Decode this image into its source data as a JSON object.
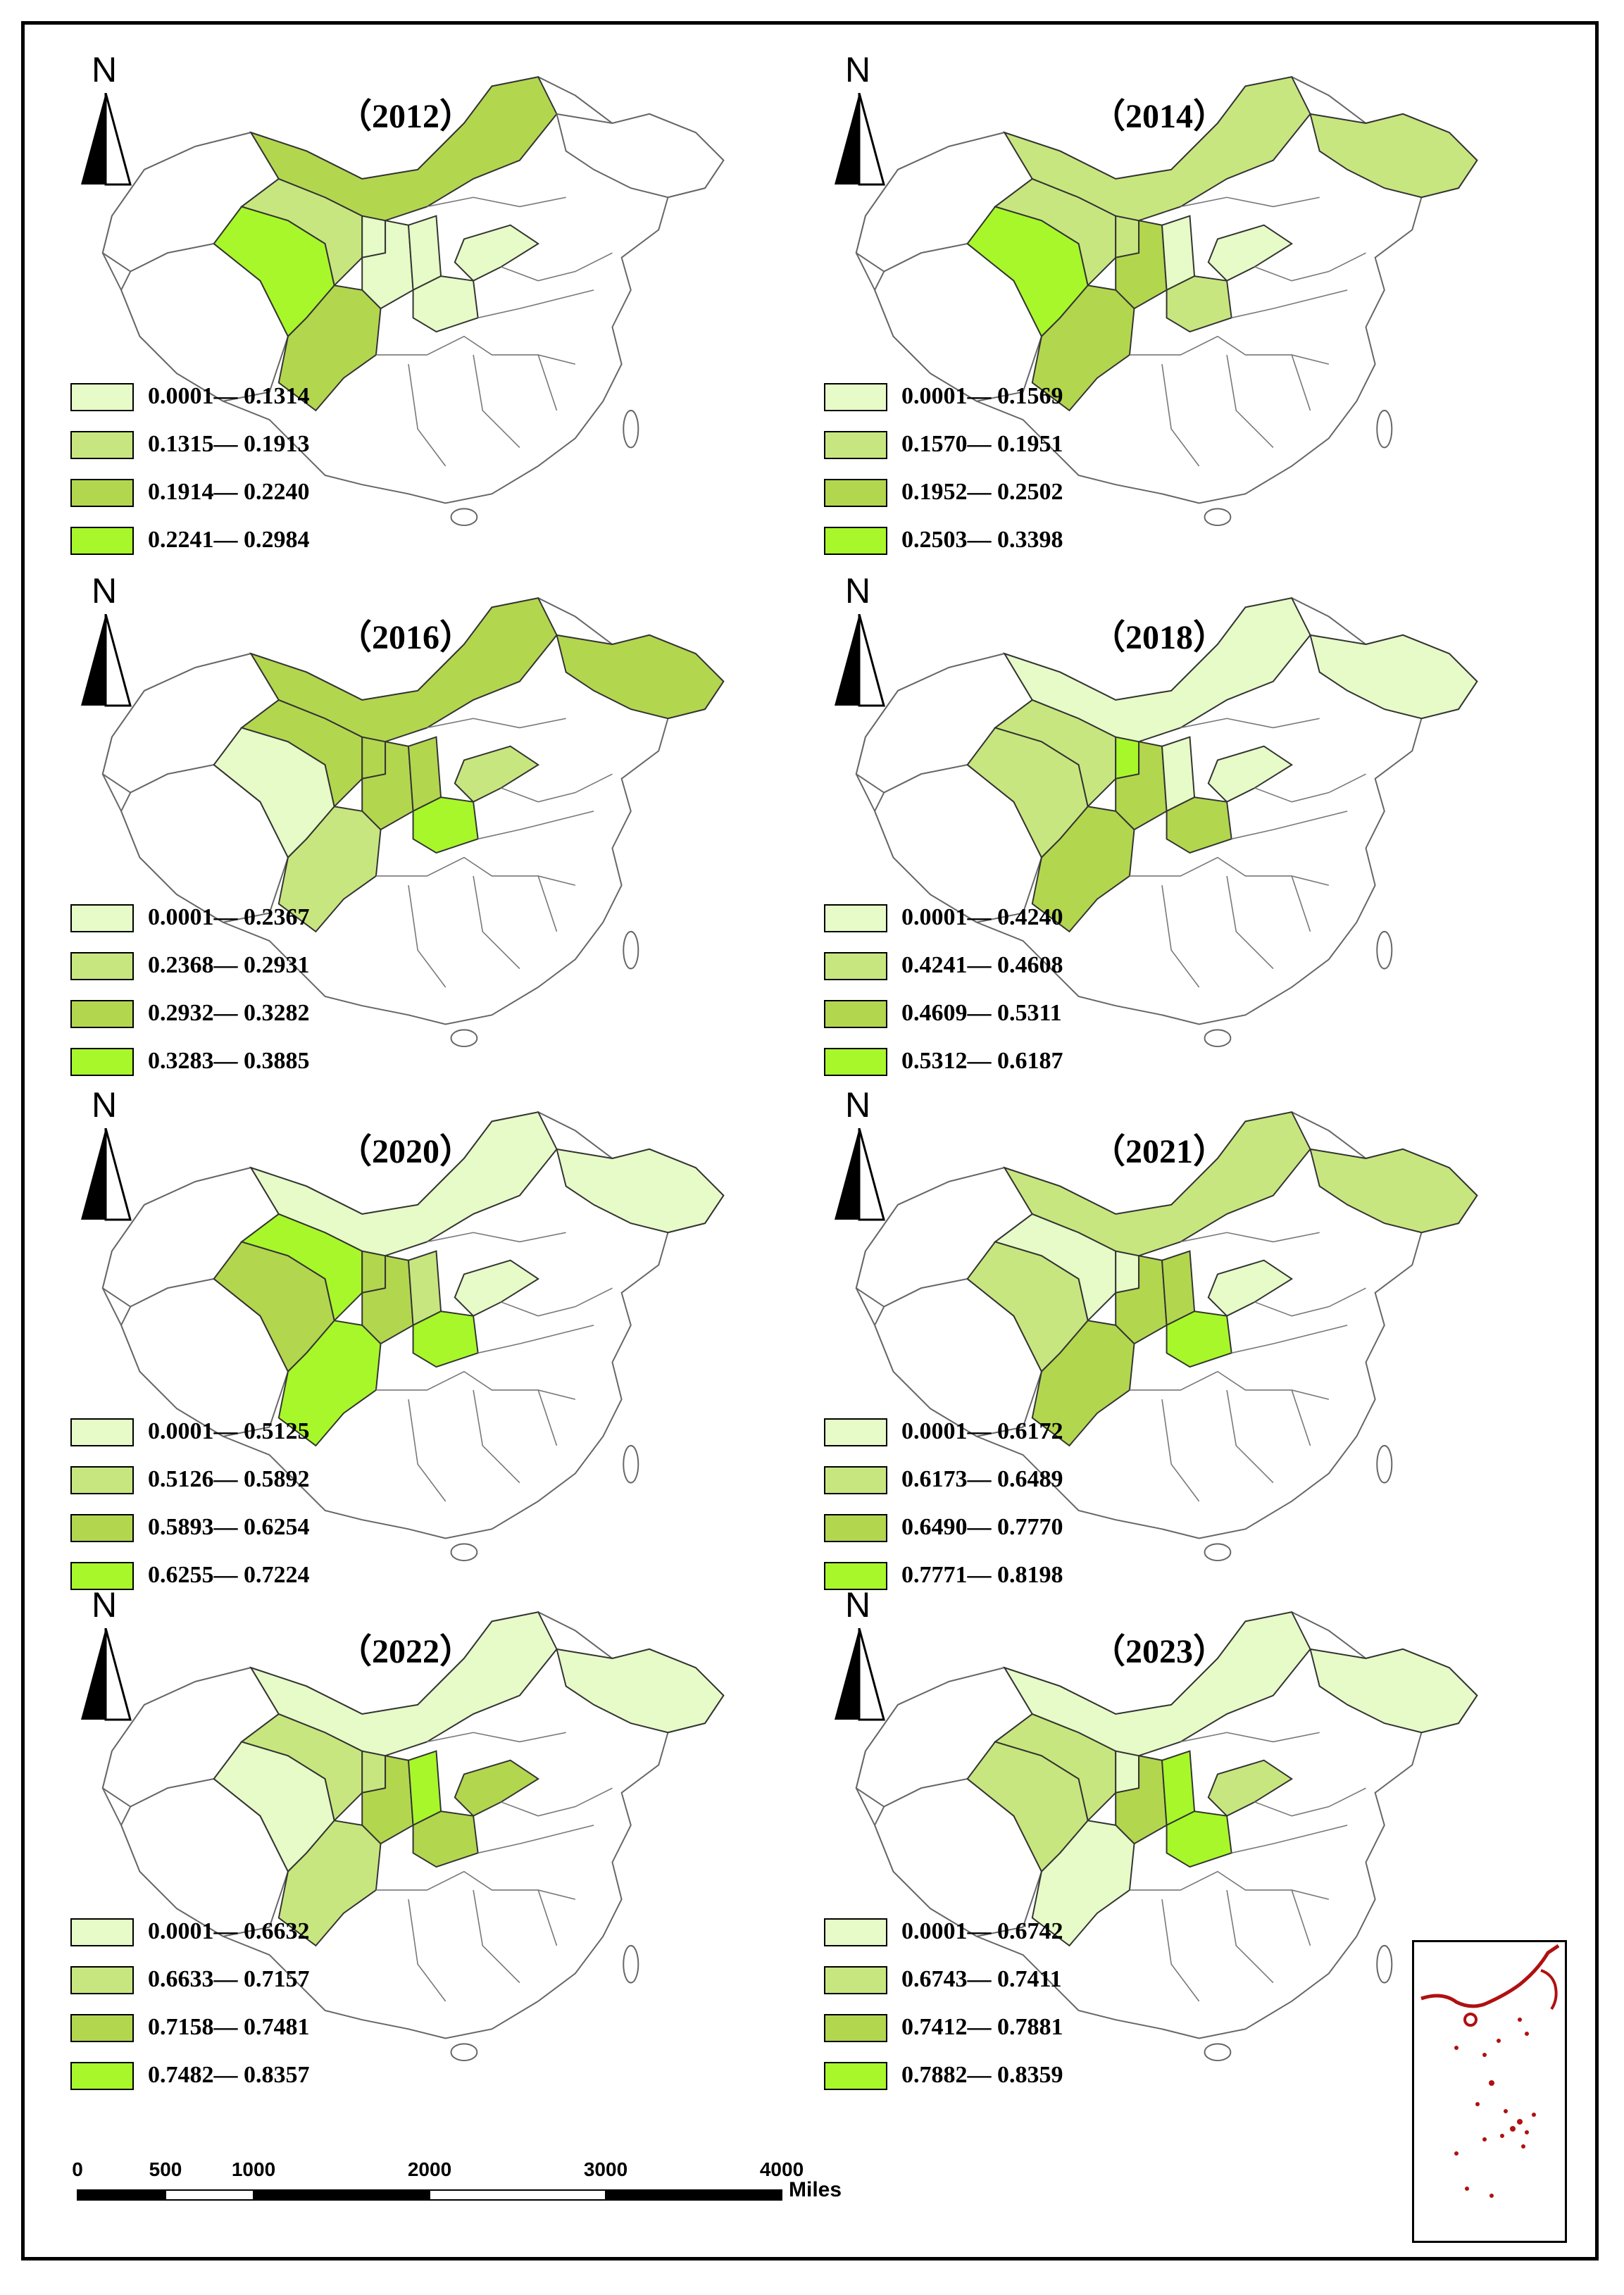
{
  "north_label": "N",
  "swatch_colors": [
    "#e6fbc7",
    "#c8e67f",
    "#b3d64f",
    "#a8f72a"
  ],
  "panels": [
    {
      "year": "（2012）",
      "legend": [
        "0.0001— 0.1314",
        "0.1315— 0.1913",
        "0.1914— 0.2240",
        "0.2241— 0.2984"
      ]
    },
    {
      "year": "（2014）",
      "legend": [
        "0.0001— 0.1569",
        "0.1570— 0.1951",
        "0.1952— 0.2502",
        "0.2503— 0.3398"
      ]
    },
    {
      "year": "（2016）",
      "legend": [
        "0.0001— 0.2367",
        "0.2368— 0.2931",
        "0.2932— 0.3282",
        "0.3283— 0.3885"
      ]
    },
    {
      "year": "（2018）",
      "legend": [
        "0.0001— 0.4240",
        "0.4241— 0.4608",
        "0.4609— 0.5311",
        "0.5312— 0.6187"
      ]
    },
    {
      "year": "（2020）",
      "legend": [
        "0.0001— 0.5125",
        "0.5126— 0.5892",
        "0.5893— 0.6254",
        "0.6255— 0.7224"
      ]
    },
    {
      "year": "（2021）",
      "legend": [
        "0.0001— 0.6172",
        "0.6173— 0.6489",
        "0.6490— 0.7770",
        "0.7771— 0.8198"
      ]
    },
    {
      "year": "（2022）",
      "legend": [
        "0.0001— 0.6632",
        "0.6633— 0.7157",
        "0.7158— 0.7481",
        "0.7482— 0.8357"
      ]
    },
    {
      "year": "（2023）",
      "legend": [
        "0.0001— 0.6742",
        "0.6743— 0.7411",
        "0.7412— 0.7881",
        "0.7882— 0.8359"
      ]
    }
  ],
  "scalebar": {
    "ticks": [
      "0",
      "500",
      "1000",
      "2000",
      "3000",
      "4000"
    ],
    "unit": "Miles"
  }
}
